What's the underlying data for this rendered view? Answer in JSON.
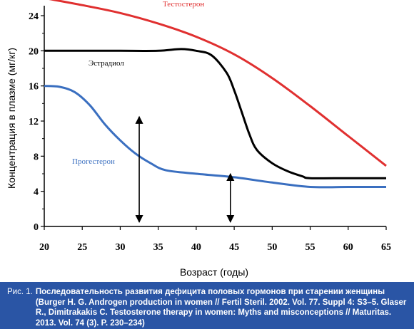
{
  "chart_data": {
    "type": "line",
    "xlabel": "Возраст (годы)",
    "ylabel": "Концентрация в плазме (мг/кг)",
    "xlim": [
      20,
      65
    ],
    "ylim": [
      0,
      24
    ],
    "x_ticks": [
      "20",
      "25",
      "30",
      "35",
      "40",
      "45",
      "50",
      "55",
      "60",
      "65"
    ],
    "y_ticks": [
      "0",
      "4",
      "8",
      "12",
      "16",
      "20",
      "24"
    ],
    "grid": false,
    "series": [
      {
        "name": "Тестостерон",
        "color": "#e03030",
        "points": [
          [
            20,
            26.0
          ],
          [
            25,
            25.2
          ],
          [
            30,
            24.3
          ],
          [
            35,
            23.1
          ],
          [
            40,
            21.6
          ],
          [
            45,
            19.6
          ],
          [
            50,
            16.9
          ],
          [
            55,
            13.7
          ],
          [
            60,
            10.3
          ],
          [
            65,
            6.9
          ]
        ]
      },
      {
        "name": "Эстрадиол",
        "color": "#000000",
        "points": [
          [
            20,
            20.0
          ],
          [
            25,
            20.0
          ],
          [
            30,
            20.0
          ],
          [
            35,
            20.0
          ],
          [
            38,
            20.2
          ],
          [
            40,
            20.0
          ],
          [
            42,
            19.5
          ],
          [
            44,
            17.5
          ],
          [
            45,
            15.5
          ],
          [
            46,
            13.0
          ],
          [
            47,
            10.5
          ],
          [
            48,
            8.7
          ],
          [
            50,
            7.2
          ],
          [
            52,
            6.3
          ],
          [
            54,
            5.7
          ],
          [
            55,
            5.5
          ],
          [
            60,
            5.5
          ],
          [
            65,
            5.5
          ]
        ]
      },
      {
        "name": "Прогестерон",
        "color": "#3a6fc0",
        "points": [
          [
            20,
            16.0
          ],
          [
            22,
            15.9
          ],
          [
            24,
            15.3
          ],
          [
            26,
            13.8
          ],
          [
            28,
            11.6
          ],
          [
            30,
            9.8
          ],
          [
            32,
            8.3
          ],
          [
            34,
            7.2
          ],
          [
            36,
            6.4
          ],
          [
            40,
            6.0
          ],
          [
            45,
            5.6
          ],
          [
            50,
            5.0
          ],
          [
            55,
            4.5
          ],
          [
            60,
            4.5
          ],
          [
            65,
            4.5
          ]
        ]
      }
    ],
    "annotations": [
      {
        "type": "double-arrow",
        "x": 32.5,
        "y_from": 0.5,
        "y_to": 12.5
      },
      {
        "type": "double-arrow",
        "x": 44.5,
        "y_from": 0.5,
        "y_to": 6.0
      }
    ]
  },
  "caption": {
    "number": "Рис. 1.",
    "text": "Последовательность развития дефицита половых гормонов при старении женщины (Burger H. G. Androgen production in women // Fertil Steril. 2002. Vol. 77. Suppl 4: S3–5. Glaser R., Dimitrakakis C. Testosterone therapy in women: Myths and misconceptions // Maturitas. 2013. Vol. 74 (3). P. 230–234)"
  }
}
